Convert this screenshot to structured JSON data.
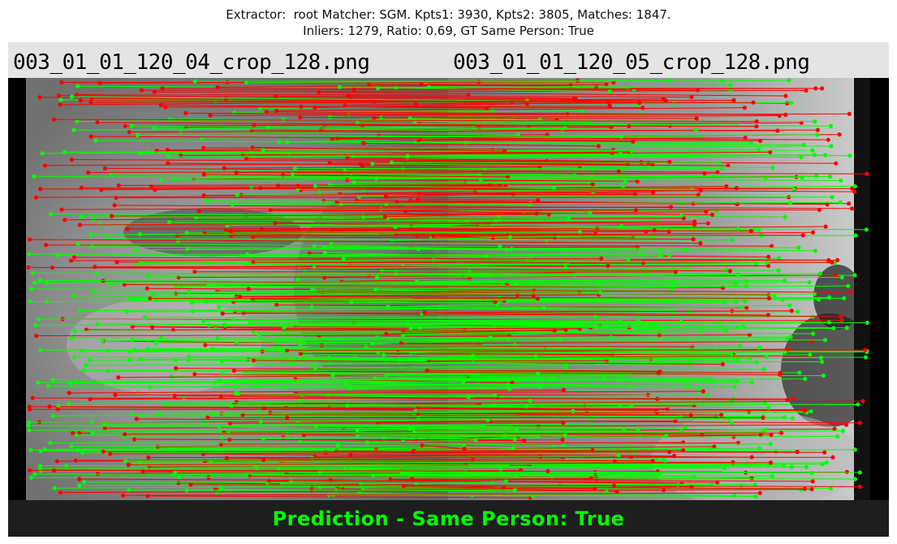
{
  "title": {
    "line1": "Extractor:  root Matcher: SGM. Kpts1: 3930, Kpts2: 3805, Matches: 1847.",
    "line2": "Inliers: 1279, Ratio: 0.69, GT Same Person: True"
  },
  "images": {
    "left_filename": "003_01_01_120_04_crop_128.png",
    "right_filename": "003_01_01_120_05_crop_128.png"
  },
  "footer": {
    "prediction": "Prediction - Same Person: True"
  },
  "colors": {
    "inlier": "#00ff00",
    "outlier": "#ff0000",
    "header_band": "#e4e4e4",
    "footer_band": "#1e1e1e"
  }
}
